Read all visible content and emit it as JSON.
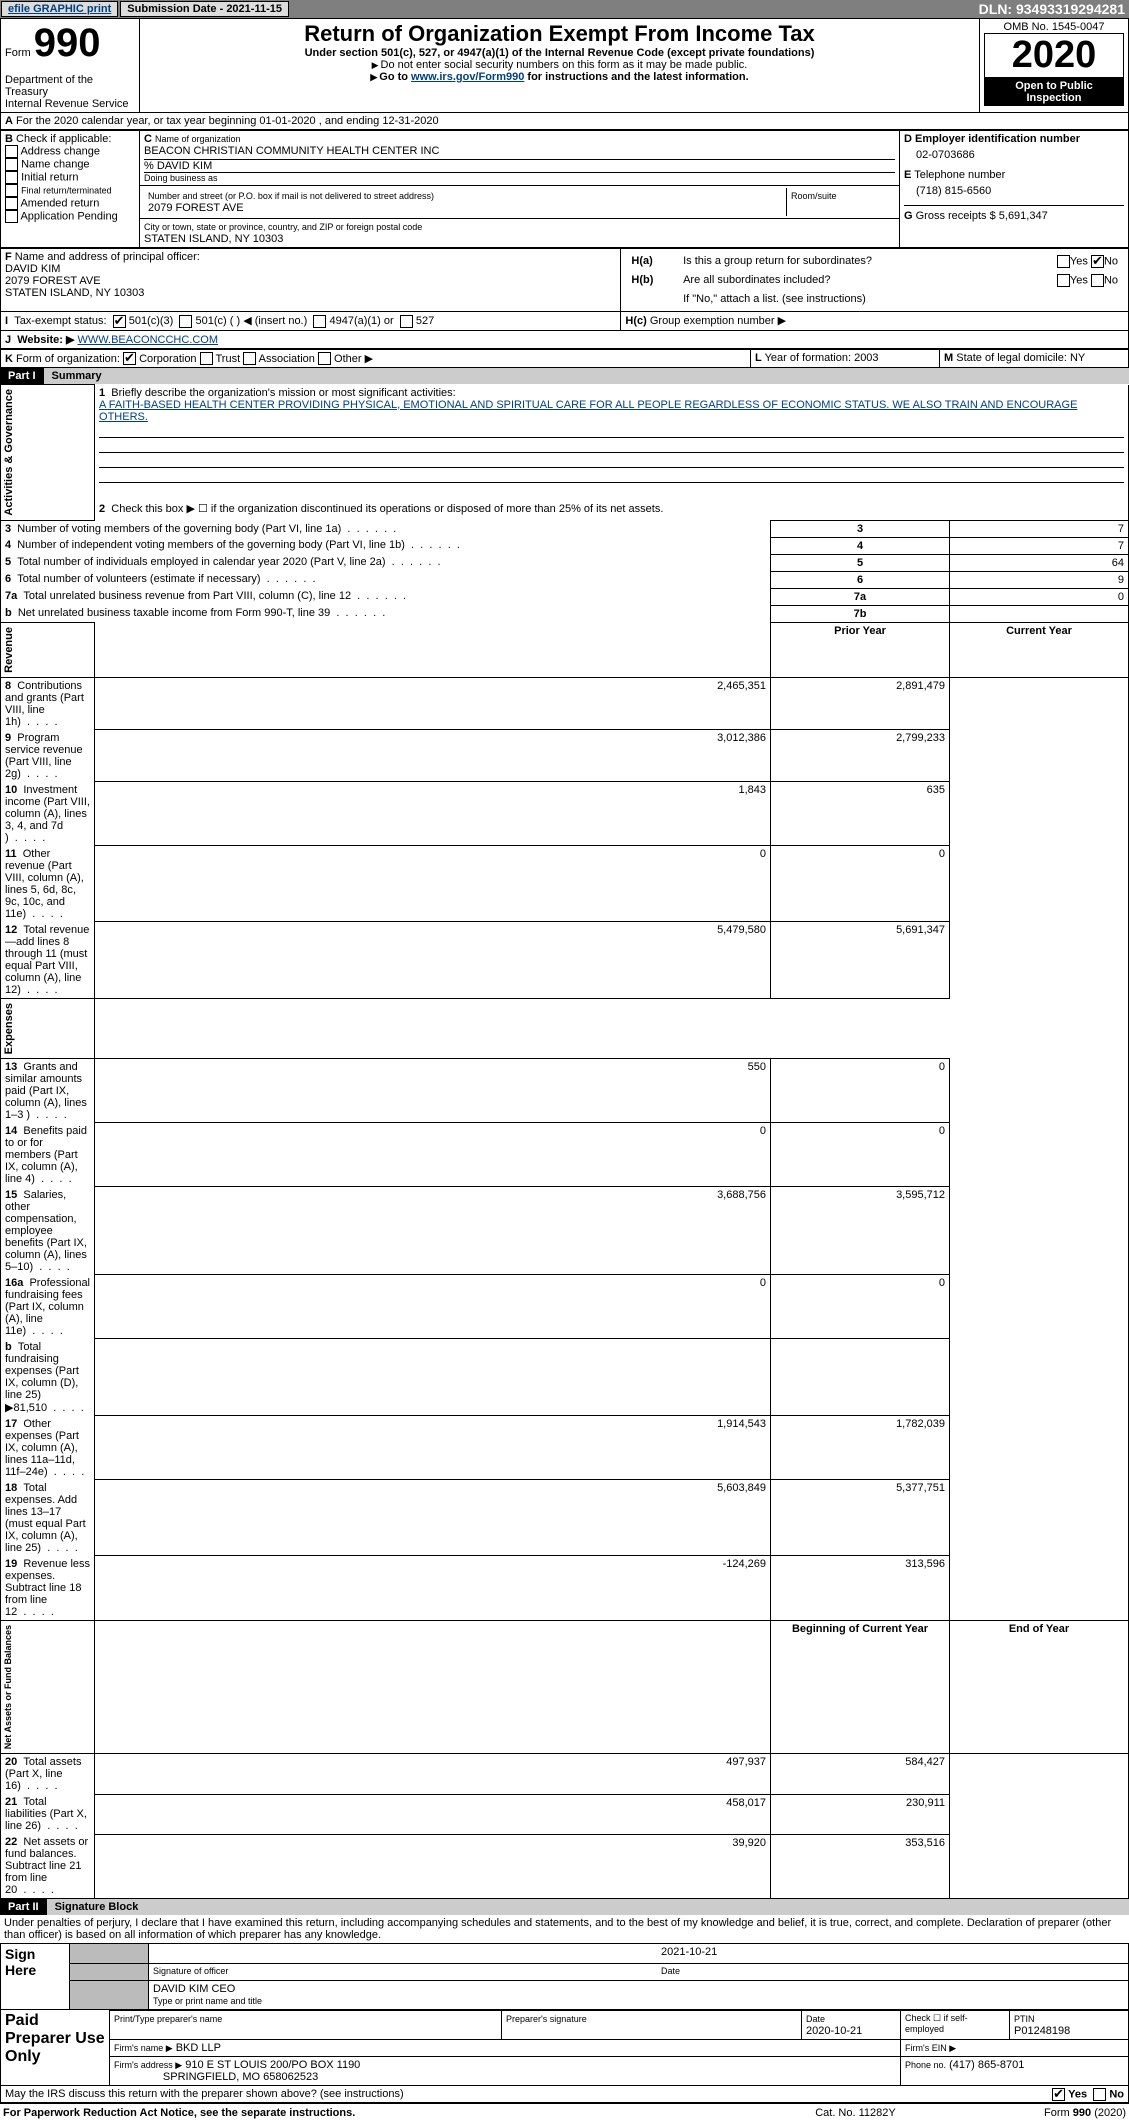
{
  "topbar": {
    "efile_label": "efile GRAPHIC print",
    "submission_label": "Submission Date - 2021-11-15",
    "dln": "DLN: 93493319294281"
  },
  "header": {
    "form_label": "Form",
    "form_no": "990",
    "dept": "Department of the Treasury",
    "irs": "Internal Revenue Service",
    "title": "Return of Organization Exempt From Income Tax",
    "subtitle": "Under section 501(c), 527, or 4947(a)(1) of the Internal Revenue Code (except private foundations)",
    "note1": "Do not enter social security numbers on this form as it may be made public.",
    "note2": "Go to ",
    "note2_link": "www.irs.gov/Form990",
    "note2_after": " for instructions and the latest information.",
    "omb": "OMB No. 1545-0047",
    "year": "2020",
    "inspect1": "Open to Public",
    "inspect2": "Inspection"
  },
  "line_a": "For the 2020 calendar year, or tax year beginning 01-01-2020   , and ending 12-31-2020",
  "box_b": {
    "label": "Check if applicable:",
    "opts": [
      "Address change",
      "Name change",
      "Initial return",
      "Final return/terminated",
      "Amended return",
      "Application Pending"
    ]
  },
  "box_c": {
    "lbl_name": "Name of organization",
    "name": "BEACON CHRISTIAN COMMUNITY HEALTH CENTER INC",
    "care_of": "% DAVID KIM",
    "dba_lbl": "Doing business as",
    "addr_lbl": "Number and street (or P.O. box if mail is not delivered to street address)",
    "room_lbl": "Room/suite",
    "addr": "2079 FOREST AVE",
    "city_lbl": "City or town, state or province, country, and ZIP or foreign postal code",
    "city": "STATEN ISLAND, NY  10303"
  },
  "box_d": {
    "lbl": "Employer identification number",
    "val": "02-0703686"
  },
  "box_e": {
    "lbl": "Telephone number",
    "val": "(718) 815-6560"
  },
  "box_g": {
    "lbl": "Gross receipts $ 5,691,347"
  },
  "box_f": {
    "lbl": "Name and address of principal officer:",
    "line1": "DAVID KIM",
    "line2": "2079 FOREST AVE",
    "line3": "STATEN ISLAND, NY  10303"
  },
  "box_h": {
    "a": "Is this a group return for subordinates?",
    "b": "Are all subordinates included?",
    "note": "If \"No,\" attach a list. (see instructions)",
    "c": "Group exemption number ▶"
  },
  "line_i": {
    "lbl": "Tax-exempt status:",
    "o1": "501(c)(3)",
    "o2": "501(c) (   ) ◀ (insert no.)",
    "o3": "4947(a)(1) or",
    "o4": "527"
  },
  "line_j": {
    "lbl": "Website: ▶",
    "val": "WWW.BEACONCCHC.COM"
  },
  "line_k": "Form of organization:",
  "k_opts": [
    "Corporation",
    "Trust",
    "Association",
    "Other ▶"
  ],
  "box_l": "Year of formation: 2003",
  "box_m": "State of legal domicile: NY",
  "part1": {
    "hdr": "Part I",
    "ttl": "Summary",
    "side_gov": "Activities & Governance",
    "side_rev": "Revenue",
    "side_exp": "Expenses",
    "side_na": "Net Assets or Fund Balances",
    "l1_lbl": "Briefly describe the organization's mission or most significant activities:",
    "l1_txt": "A FAITH-BASED HEALTH CENTER PROVIDING PHYSICAL, EMOTIONAL AND SPIRITUAL CARE FOR ALL PEOPLE REGARDLESS OF ECONOMIC STATUS. WE ALSO TRAIN AND ENCOURAGE OTHERS.",
    "l2": "Check this box ▶ ☐  if the organization discontinued its operations or disposed of more than 25% of its net assets.",
    "rows_a": [
      {
        "n": "3",
        "t": "Number of voting members of the governing body (Part VI, line 1a)",
        "box": "3",
        "v": "7"
      },
      {
        "n": "4",
        "t": "Number of independent voting members of the governing body (Part VI, line 1b)",
        "box": "4",
        "v": "7"
      },
      {
        "n": "5",
        "t": "Total number of individuals employed in calendar year 2020 (Part V, line 2a)",
        "box": "5",
        "v": "64"
      },
      {
        "n": "6",
        "t": "Total number of volunteers (estimate if necessary)",
        "box": "6",
        "v": "9"
      },
      {
        "n": "7a",
        "t": "Total unrelated business revenue from Part VIII, column (C), line 12",
        "box": "7a",
        "v": "0"
      },
      {
        "n": "b",
        "t": "Net unrelated business taxable income from Form 990-T, line 39",
        "box": "7b",
        "v": ""
      }
    ],
    "col_py": "Prior Year",
    "col_cy": "Current Year",
    "rows_b": [
      {
        "n": "8",
        "t": "Contributions and grants (Part VIII, line 1h)",
        "py": "2,465,351",
        "cy": "2,891,479"
      },
      {
        "n": "9",
        "t": "Program service revenue (Part VIII, line 2g)",
        "py": "3,012,386",
        "cy": "2,799,233"
      },
      {
        "n": "10",
        "t": "Investment income (Part VIII, column (A), lines 3, 4, and 7d )",
        "py": "1,843",
        "cy": "635"
      },
      {
        "n": "11",
        "t": "Other revenue (Part VIII, column (A), lines 5, 6d, 8c, 9c, 10c, and 11e)",
        "py": "0",
        "cy": "0"
      },
      {
        "n": "12",
        "t": "Total revenue—add lines 8 through 11 (must equal Part VIII, column (A), line 12)",
        "py": "5,479,580",
        "cy": "5,691,347"
      }
    ],
    "rows_c": [
      {
        "n": "13",
        "t": "Grants and similar amounts paid (Part IX, column (A), lines 1–3 )",
        "py": "550",
        "cy": "0"
      },
      {
        "n": "14",
        "t": "Benefits paid to or for members (Part IX, column (A), line 4)",
        "py": "0",
        "cy": "0"
      },
      {
        "n": "15",
        "t": "Salaries, other compensation, employee benefits (Part IX, column (A), lines 5–10)",
        "py": "3,688,756",
        "cy": "3,595,712"
      },
      {
        "n": "16a",
        "t": "Professional fundraising fees (Part IX, column (A), line 11e)",
        "py": "0",
        "cy": "0"
      },
      {
        "n": "b",
        "t": "Total fundraising expenses (Part IX, column (D), line 25) ▶81,510",
        "py": "",
        "cy": "",
        "grey": true
      },
      {
        "n": "17",
        "t": "Other expenses (Part IX, column (A), lines 11a–11d, 11f–24e)",
        "py": "1,914,543",
        "cy": "1,782,039"
      },
      {
        "n": "18",
        "t": "Total expenses. Add lines 13–17 (must equal Part IX, column (A), line 25)",
        "py": "5,603,849",
        "cy": "5,377,751"
      },
      {
        "n": "19",
        "t": "Revenue less expenses. Subtract line 18 from line 12",
        "py": "-124,269",
        "cy": "313,596"
      }
    ],
    "col_bcy": "Beginning of Current Year",
    "col_eoy": "End of Year",
    "rows_d": [
      {
        "n": "20",
        "t": "Total assets (Part X, line 16)",
        "py": "497,937",
        "cy": "584,427"
      },
      {
        "n": "21",
        "t": "Total liabilities (Part X, line 26)",
        "py": "458,017",
        "cy": "230,911"
      },
      {
        "n": "22",
        "t": "Net assets or fund balances. Subtract line 21 from line 20",
        "py": "39,920",
        "cy": "353,516"
      }
    ]
  },
  "part2": {
    "hdr": "Part II",
    "ttl": "Signature Block",
    "decl": "Under penalties of perjury, I declare that I have examined this return, including accompanying schedules and statements, and to the best of my knowledge and belief, it is true, correct, and complete. Declaration of preparer (other than officer) is based on all information of which preparer has any knowledge.",
    "sign_here": "Sign Here",
    "sig_lbl": "Signature of officer",
    "sig_date": "2021-10-21",
    "date_lbl": "Date",
    "name_lbl": "DAVID KIM CEO",
    "type_lbl": "Type or print name and title",
    "paid": "Paid Preparer Use Only",
    "prep_name_lbl": "Print/Type preparer's name",
    "prep_sig_lbl": "Preparer's signature",
    "prep_date_lbl": "Date",
    "prep_date": "2020-10-21",
    "self_emp": "Check ☐ if self-employed",
    "ptin_lbl": "PTIN",
    "ptin": "P01248198",
    "firm_name_lbl": "Firm's name   ▶",
    "firm_name": "BKD LLP",
    "firm_ein_lbl": "Firm's EIN ▶",
    "firm_addr_lbl": "Firm's address ▶",
    "firm_addr1": "910 E ST LOUIS 200/PO BOX 1190",
    "firm_addr2": "SPRINGFIELD, MO  658062523",
    "phone_lbl": "Phone no.",
    "phone": "(417) 865-8701",
    "discuss": "May the IRS discuss this return with the preparer shown above? (see instructions)",
    "yes": "Yes",
    "no": "No"
  },
  "footer": {
    "pra": "For Paperwork Reduction Act Notice, see the separate instructions.",
    "cat": "Cat. No. 11282Y",
    "form": "Form 990 (2020)"
  },
  "colors": {
    "link": "#004080",
    "grey": "#b0b0b0",
    "topbar": "#7f7f7f"
  }
}
